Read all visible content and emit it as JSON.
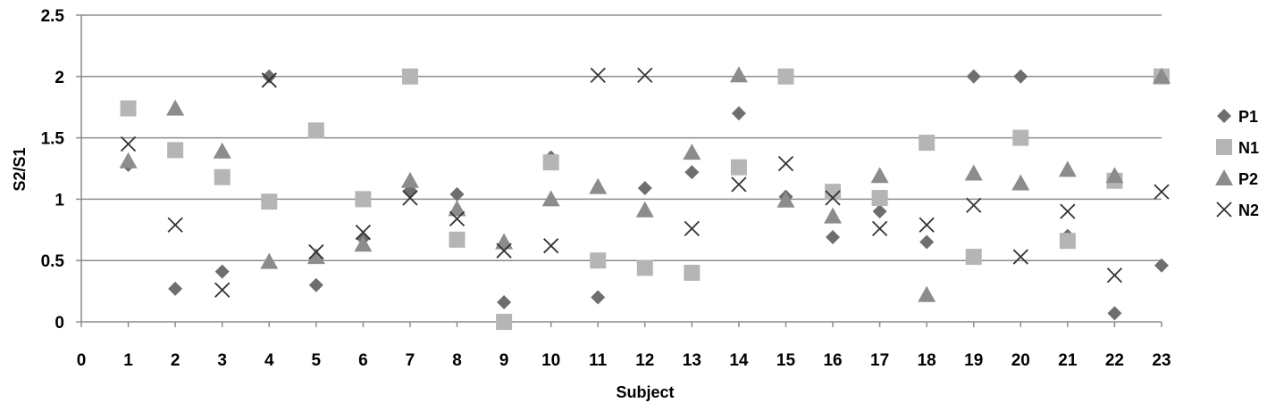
{
  "chart_data": {
    "type": "scatter",
    "title": "",
    "xlabel": "Subject",
    "ylabel": "S2/S1",
    "xlim": [
      0,
      23
    ],
    "ylim": [
      0,
      2.5
    ],
    "x_ticks": [
      0,
      1,
      2,
      3,
      4,
      5,
      6,
      7,
      8,
      9,
      10,
      11,
      12,
      13,
      14,
      15,
      16,
      17,
      18,
      19,
      20,
      21,
      22,
      23
    ],
    "y_ticks": [
      0,
      0.5,
      1,
      1.5,
      2,
      2.5
    ],
    "grid": "horizontal",
    "legend_position": "right",
    "series": [
      {
        "name": "P1",
        "marker": "diamond",
        "color": "#6e6e6e",
        "points": [
          [
            1,
            1.28
          ],
          [
            2,
            0.27
          ],
          [
            3,
            0.41
          ],
          [
            4,
            2.0
          ],
          [
            5,
            0.3
          ],
          [
            6,
            0.68
          ],
          [
            7,
            1.07
          ],
          [
            8,
            1.04
          ],
          [
            9,
            0.16
          ],
          [
            10,
            1.34
          ],
          [
            11,
            0.2
          ],
          [
            12,
            1.09
          ],
          [
            13,
            1.22
          ],
          [
            14,
            1.7
          ],
          [
            15,
            1.02
          ],
          [
            16,
            0.69
          ],
          [
            17,
            0.9
          ],
          [
            18,
            0.65
          ],
          [
            19,
            2.0
          ],
          [
            20,
            2.0
          ],
          [
            21,
            0.7
          ],
          [
            22,
            0.07
          ],
          [
            23,
            0.46
          ]
        ]
      },
      {
        "name": "N1",
        "marker": "square",
        "color": "#b5b5b5",
        "points": [
          [
            1,
            1.74
          ],
          [
            2,
            1.4
          ],
          [
            3,
            1.18
          ],
          [
            4,
            0.98
          ],
          [
            5,
            1.56
          ],
          [
            6,
            1.0
          ],
          [
            7,
            2.0
          ],
          [
            8,
            0.67
          ],
          [
            9,
            0.0
          ],
          [
            10,
            1.3
          ],
          [
            11,
            0.5
          ],
          [
            12,
            0.44
          ],
          [
            13,
            0.4
          ],
          [
            14,
            1.26
          ],
          [
            15,
            2.0
          ],
          [
            16,
            1.06
          ],
          [
            17,
            1.01
          ],
          [
            18,
            1.46
          ],
          [
            19,
            0.53
          ],
          [
            20,
            1.5
          ],
          [
            21,
            0.66
          ],
          [
            22,
            1.15
          ],
          [
            23,
            2.0
          ]
        ]
      },
      {
        "name": "P2",
        "marker": "triangle",
        "color": "#8c8c8c",
        "points": [
          [
            1,
            1.31
          ],
          [
            2,
            1.74
          ],
          [
            3,
            1.39
          ],
          [
            4,
            0.49
          ],
          [
            5,
            0.53
          ],
          [
            6,
            0.63
          ],
          [
            7,
            1.15
          ],
          [
            8,
            0.92
          ],
          [
            9,
            0.65
          ],
          [
            10,
            1.0
          ],
          [
            11,
            1.1
          ],
          [
            12,
            0.91
          ],
          [
            13,
            1.38
          ],
          [
            14,
            2.01
          ],
          [
            15,
            0.99
          ],
          [
            16,
            0.86
          ],
          [
            17,
            1.19
          ],
          [
            18,
            0.22
          ],
          [
            19,
            1.21
          ],
          [
            20,
            1.13
          ],
          [
            21,
            1.24
          ],
          [
            22,
            1.19
          ],
          [
            23,
            2.0
          ]
        ]
      },
      {
        "name": "N2",
        "marker": "x",
        "color": "#333333",
        "points": [
          [
            1,
            1.45
          ],
          [
            2,
            0.79
          ],
          [
            3,
            0.26
          ],
          [
            4,
            1.97
          ],
          [
            5,
            0.57
          ],
          [
            6,
            0.73
          ],
          [
            7,
            1.01
          ],
          [
            8,
            0.84
          ],
          [
            9,
            0.58
          ],
          [
            10,
            0.62
          ],
          [
            11,
            2.01
          ],
          [
            12,
            2.01
          ],
          [
            13,
            0.76
          ],
          [
            14,
            1.12
          ],
          [
            15,
            1.29
          ],
          [
            16,
            1.01
          ],
          [
            17,
            0.76
          ],
          [
            18,
            0.79
          ],
          [
            19,
            0.95
          ],
          [
            20,
            0.53
          ],
          [
            21,
            0.9
          ],
          [
            22,
            0.38
          ],
          [
            23,
            1.06
          ]
        ]
      }
    ]
  }
}
